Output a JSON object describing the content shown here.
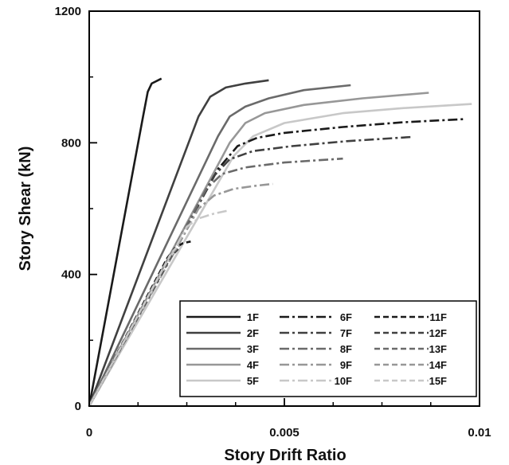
{
  "chart_data": {
    "type": "line",
    "xlabel": "Story Drift Ratio",
    "ylabel": "Story Shear (kN)",
    "xlim": [
      0,
      0.01
    ],
    "ylim": [
      0,
      1200
    ],
    "xticks": [
      0,
      0.005,
      0.01
    ],
    "xtick_labels": [
      "0",
      "0.005",
      "0.01"
    ],
    "yticks": [
      0,
      400,
      800,
      1200
    ],
    "ytick_labels": [
      "0",
      "400",
      "800",
      "1200"
    ],
    "grid": false,
    "legend_position": "bottom-right",
    "series": [
      {
        "name": "1F",
        "color": "#1a1a1a",
        "dash": "solid",
        "points": [
          [
            0,
            0
          ],
          [
            0.00138,
            880
          ],
          [
            0.0015,
            955
          ],
          [
            0.0016,
            980
          ],
          [
            0.00185,
            995
          ]
        ]
      },
      {
        "name": "2F",
        "color": "#404040",
        "dash": "solid",
        "points": [
          [
            0,
            0
          ],
          [
            0.0028,
            880
          ],
          [
            0.0031,
            940
          ],
          [
            0.0035,
            968
          ],
          [
            0.004,
            980
          ],
          [
            0.0046,
            990
          ]
        ]
      },
      {
        "name": "3F",
        "color": "#6a6a6a",
        "dash": "solid",
        "points": [
          [
            0,
            0
          ],
          [
            0.0033,
            820
          ],
          [
            0.0036,
            880
          ],
          [
            0.004,
            910
          ],
          [
            0.0046,
            935
          ],
          [
            0.0055,
            960
          ],
          [
            0.0067,
            975
          ]
        ]
      },
      {
        "name": "4F",
        "color": "#979797",
        "dash": "solid",
        "points": [
          [
            0,
            0
          ],
          [
            0.0036,
            800
          ],
          [
            0.004,
            860
          ],
          [
            0.0045,
            890
          ],
          [
            0.0055,
            915
          ],
          [
            0.007,
            935
          ],
          [
            0.0087,
            952
          ]
        ]
      },
      {
        "name": "5F",
        "color": "#c8c8c8",
        "dash": "solid",
        "points": [
          [
            0,
            0
          ],
          [
            0.0037,
            760
          ],
          [
            0.0042,
            820
          ],
          [
            0.005,
            860
          ],
          [
            0.0065,
            890
          ],
          [
            0.008,
            905
          ],
          [
            0.0098,
            918
          ]
        ]
      },
      {
        "name": "6F",
        "color": "#1a1a1a",
        "dash": "dashdot",
        "points": [
          [
            0,
            0
          ],
          [
            0.0033,
            720
          ],
          [
            0.0038,
            790
          ],
          [
            0.0043,
            815
          ],
          [
            0.005,
            830
          ],
          [
            0.0065,
            848
          ],
          [
            0.008,
            862
          ],
          [
            0.0096,
            872
          ]
        ]
      },
      {
        "name": "7F",
        "color": "#404040",
        "dash": "dashdot",
        "points": [
          [
            0,
            0
          ],
          [
            0.0032,
            700
          ],
          [
            0.0036,
            750
          ],
          [
            0.0042,
            775
          ],
          [
            0.0052,
            790
          ],
          [
            0.0066,
            805
          ],
          [
            0.0083,
            818
          ]
        ]
      },
      {
        "name": "8F",
        "color": "#6a6a6a",
        "dash": "dashdot",
        "points": [
          [
            0,
            0
          ],
          [
            0.003,
            660
          ],
          [
            0.0034,
            705
          ],
          [
            0.004,
            725
          ],
          [
            0.005,
            740
          ],
          [
            0.0065,
            752
          ]
        ]
      },
      {
        "name": "9F",
        "color": "#979797",
        "dash": "dashdot",
        "points": [
          [
            0,
            0
          ],
          [
            0.0028,
            600
          ],
          [
            0.0032,
            640
          ],
          [
            0.0037,
            660
          ],
          [
            0.0043,
            670
          ],
          [
            0.0047,
            675
          ]
        ]
      },
      {
        "name": "10F",
        "color": "#c8c8c8",
        "dash": "dashdot",
        "points": [
          [
            0,
            0
          ],
          [
            0.0025,
            545
          ],
          [
            0.0028,
            570
          ],
          [
            0.0032,
            585
          ],
          [
            0.0036,
            595
          ]
        ]
      },
      {
        "name": "11F",
        "color": "#1a1a1a",
        "dash": "dash",
        "points": [
          [
            0,
            0
          ],
          [
            0.002,
            450
          ],
          [
            0.0022,
            480
          ],
          [
            0.0024,
            495
          ],
          [
            0.0026,
            500
          ]
        ]
      },
      {
        "name": "12F",
        "color": "#404040",
        "dash": "dash",
        "points": [
          [
            0,
            0
          ],
          [
            0.0021,
            455
          ],
          [
            0.0023,
            480
          ]
        ]
      },
      {
        "name": "13F",
        "color": "#6a6a6a",
        "dash": "dash",
        "points": [
          [
            0,
            0
          ],
          [
            0.0021,
            460
          ],
          [
            0.0023,
            485
          ]
        ]
      },
      {
        "name": "14F",
        "color": "#979797",
        "dash": "dash",
        "points": [
          [
            0,
            0
          ],
          [
            0.0021,
            462
          ],
          [
            0.0023,
            488
          ]
        ]
      },
      {
        "name": "15F",
        "color": "#c8c8c8",
        "dash": "dash",
        "points": [
          [
            0,
            0
          ],
          [
            0.0021,
            465
          ],
          [
            0.0023,
            490
          ]
        ]
      }
    ]
  }
}
